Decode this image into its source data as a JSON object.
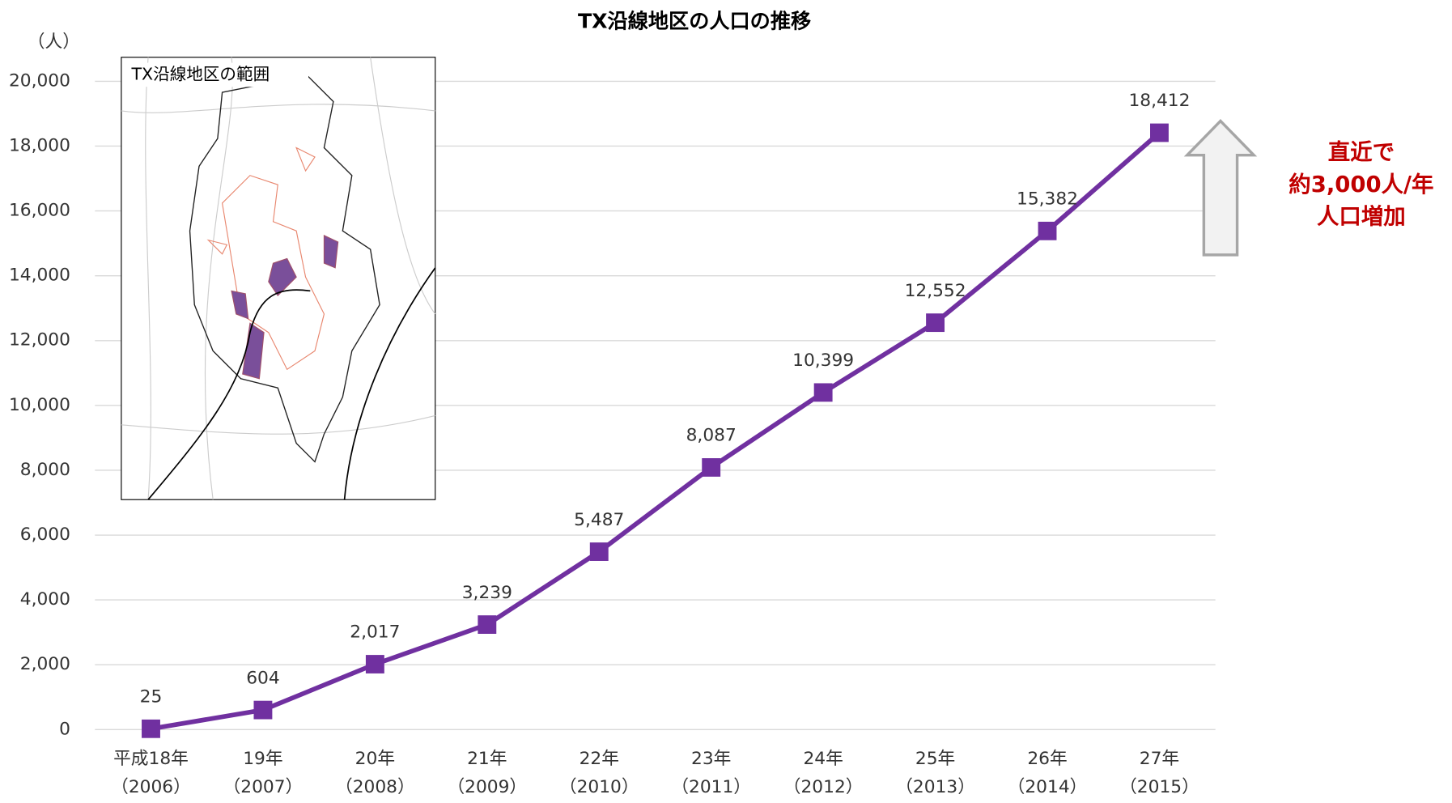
{
  "chart_data": {
    "type": "line",
    "title": "TX沿線地区の人口の推移",
    "y_axis_label": "（人）",
    "categories": [
      "平成18年",
      "19年",
      "20年",
      "21年",
      "22年",
      "23年",
      "24年",
      "25年",
      "26年",
      "27年"
    ],
    "category_years": [
      "（2006）",
      "（2007）",
      "（2008）",
      "（2009）",
      "（2010）",
      "（2011）",
      "（2012）",
      "（2013）",
      "（2014）",
      "（2015）"
    ],
    "series": [
      {
        "color": "#7030a0",
        "values": [
          25,
          604,
          2017,
          3239,
          5487,
          8087,
          10399,
          12552,
          15382,
          18412
        ],
        "value_labels": [
          "25",
          "604",
          "2,017",
          "3,239",
          "5,487",
          "8,087",
          "10,399",
          "12,552",
          "15,382",
          "18,412"
        ]
      }
    ],
    "ylim": [
      0,
      20000
    ],
    "yticks": [
      0,
      {
        "value": 2000,
        "label": "2,000"
      },
      {
        "value": 4000,
        "label": "4,000"
      },
      {
        "value": 6000,
        "label": "6,000"
      },
      {
        "value": 8000,
        "label": "8,000"
      },
      {
        "value": 10000,
        "label": "10,000"
      },
      {
        "value": 12000,
        "label": "12,000"
      },
      {
        "value": 14000,
        "label": "14,000"
      },
      {
        "value": 16000,
        "label": "16,000"
      },
      {
        "value": 18000,
        "label": "18,000"
      },
      {
        "value": 20000,
        "label": "20,000"
      }
    ],
    "grid": true,
    "inset_title": "TX沿線地区の範囲",
    "annotation": [
      "直近で",
      "約3,000人/年",
      "人口増加"
    ],
    "annotation_color": "#c00000"
  }
}
